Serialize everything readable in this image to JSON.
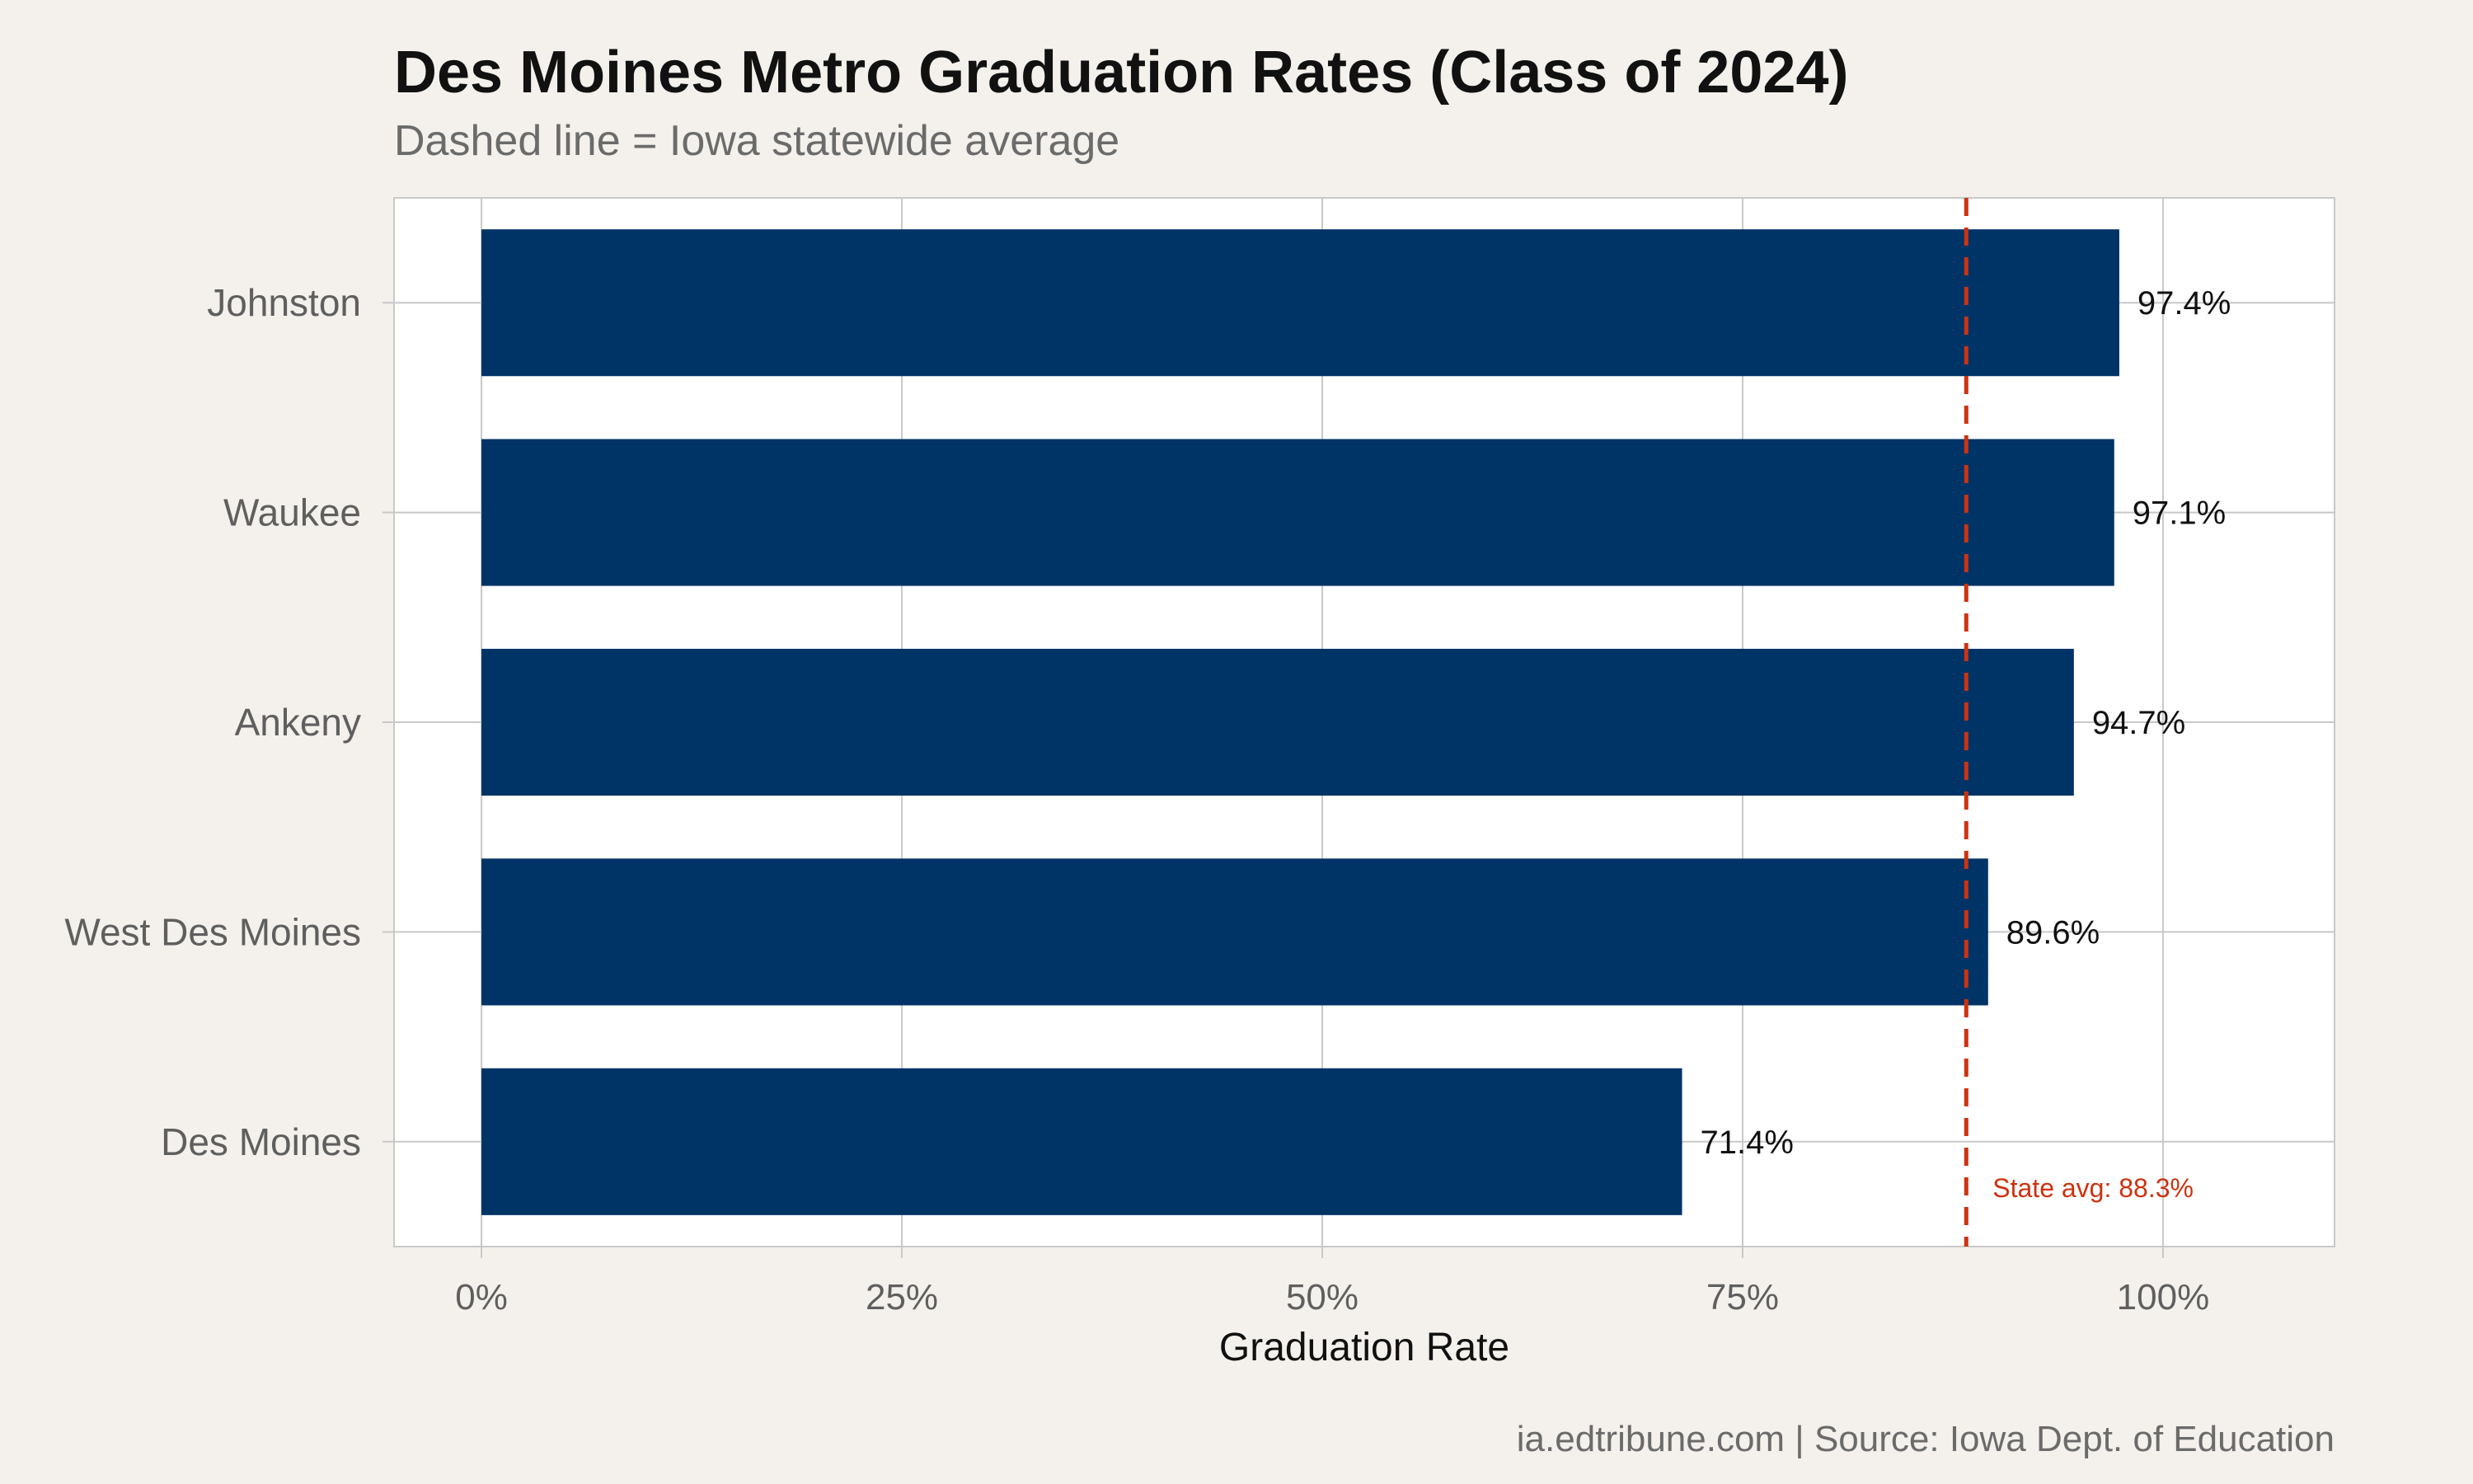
{
  "title": "Des Moines Metro Graduation Rates (Class of 2024)",
  "subtitle": "Dashed line = Iowa statewide average",
  "caption": "ia.edtribune.com | Source: Iowa Dept. of Education",
  "colors": {
    "background": "#f4f1ec",
    "panel": "#ffffff",
    "bar": "#003366",
    "reference_line": "#cc3311",
    "grid": "#c8c8c8",
    "axis_text": "#5f5f5f",
    "title_text": "#111111",
    "subtitle_text": "#6b6b6b"
  },
  "chart_data": {
    "type": "bar",
    "orientation": "horizontal",
    "categories": [
      "Johnston",
      "Waukee",
      "Ankeny",
      "West Des Moines",
      "Des Moines"
    ],
    "values": [
      97.4,
      97.1,
      94.7,
      89.6,
      71.4
    ],
    "data_labels": [
      "97.4%",
      "97.1%",
      "94.7%",
      "89.6%",
      "71.4%"
    ],
    "xlabel": "Graduation Rate",
    "ylabel": "",
    "xlim": [
      -5.2,
      110.2
    ],
    "x_ticks": [
      0,
      25,
      50,
      75,
      100
    ],
    "x_tick_labels": [
      "0%",
      "25%",
      "50%",
      "75%",
      "100%"
    ],
    "grid": true,
    "reference_line": {
      "value": 88.3,
      "style": "dashed",
      "label": "State avg: 88.3%"
    }
  }
}
